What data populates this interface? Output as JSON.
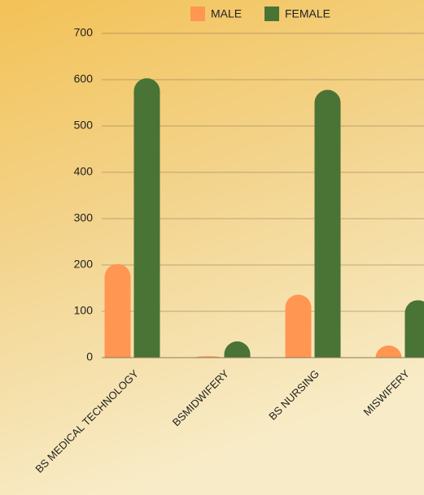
{
  "chart_data": {
    "type": "bar",
    "categories": [
      "BS MEDICAL TECHNOLOGY",
      "BSMIDWIFERY",
      "BS NURSING",
      "MISWIFERY"
    ],
    "series": [
      {
        "name": "MALE",
        "color": "#ff9652",
        "values": [
          202,
          3,
          136,
          26
        ]
      },
      {
        "name": "FEMALE",
        "color": "#4a7336",
        "values": [
          603,
          35,
          578,
          124
        ]
      }
    ],
    "ylim": [
      0,
      700
    ],
    "yticks": [
      0,
      100,
      200,
      300,
      400,
      500,
      600,
      700
    ],
    "grid": true
  }
}
